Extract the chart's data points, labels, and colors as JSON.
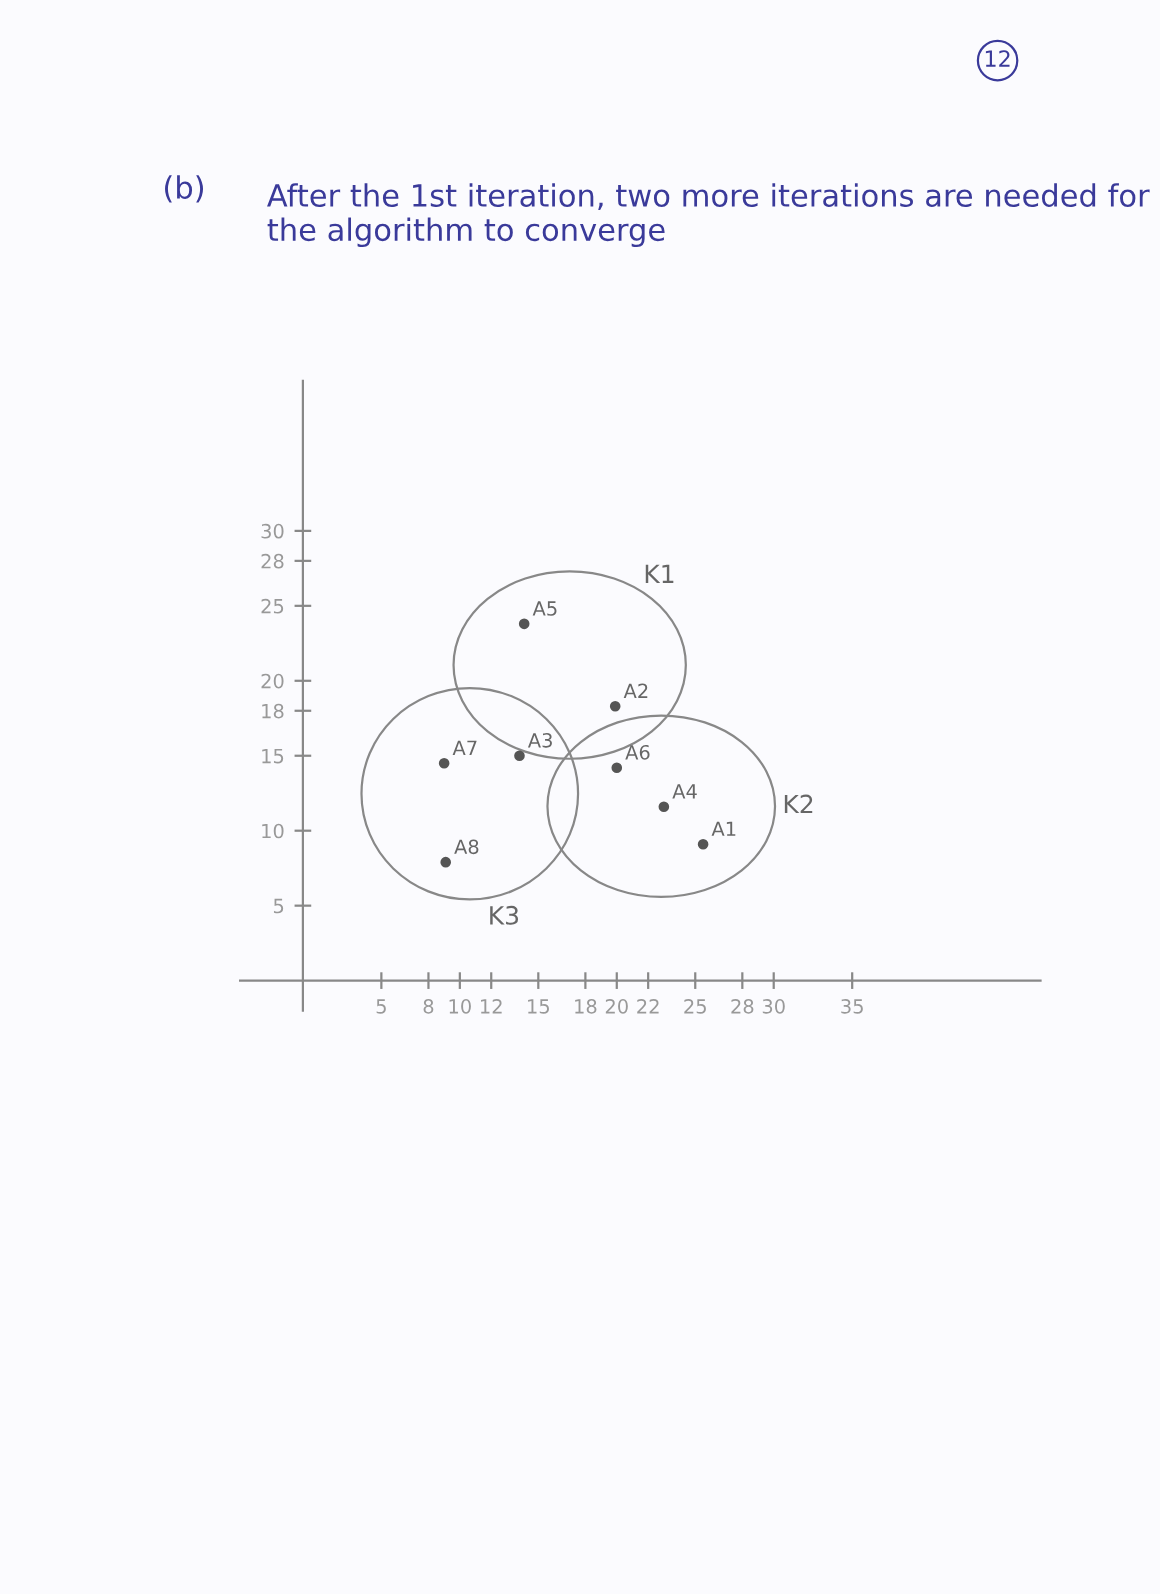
{
  "chart_data": {
    "type": "scatter",
    "title": "After the 1st iteration, two more iterations are needed for the algorithm to converge",
    "series": [
      {
        "name": "K1",
        "color": "#555555",
        "x": [
          14.1,
          19.9
        ],
        "values": [
          23.8,
          18.3
        ]
      },
      {
        "name": "K2",
        "color": "#555555",
        "x": [
          20.0,
          23.0,
          25.5
        ],
        "values": [
          14.2,
          11.6,
          9.1
        ]
      },
      {
        "name": "K3",
        "color": "#555555",
        "x": [
          9.0,
          13.8,
          9.1
        ],
        "values": [
          14.5,
          15.0,
          7.9
        ]
      }
    ],
    "annotations": [
      "(b)",
      "12",
      {
        "text": "A5",
        "x": 14.1,
        "y": 23.8
      },
      {
        "text": "A2",
        "x": 19.9,
        "y": 18.3
      },
      {
        "text": "A6",
        "x": 20.0,
        "y": 14.2
      },
      {
        "text": "A4",
        "x": 23.0,
        "y": 11.6
      },
      {
        "text": "A1",
        "x": 25.5,
        "y": 9.1
      },
      {
        "text": "A7",
        "x": 9.0,
        "y": 14.5
      },
      {
        "text": "A3",
        "x": 13.8,
        "y": 15.0
      },
      {
        "text": "A8",
        "x": 9.1,
        "y": 7.9
      }
    ],
    "xlim": [
      -4,
      47
    ],
    "ylim": [
      -2,
      40
    ],
    "xticks": [
      5,
      8,
      10,
      12,
      15,
      18,
      20,
      22,
      25,
      28,
      30,
      35
    ],
    "yticks": [
      5,
      10,
      15,
      18,
      20,
      25,
      28,
      30
    ],
    "marker": "circle",
    "grid": false,
    "legend": false
  }
}
